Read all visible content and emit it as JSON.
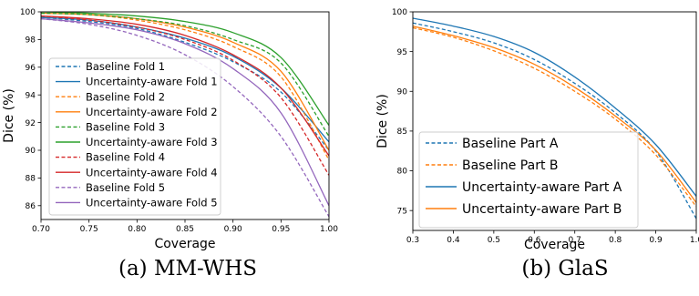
{
  "chart_data": [
    {
      "type": "line",
      "caption": "(a) MM-WHS",
      "xlabel": "Coverage",
      "ylabel": "Dice (%)",
      "xlim": [
        0.7,
        1.0
      ],
      "ylim": [
        85,
        100
      ],
      "xticks": [
        "0.70",
        "0.75",
        "0.80",
        "0.85",
        "0.90",
        "0.95",
        "1.00"
      ],
      "yticks": [
        "86",
        "88",
        "90",
        "92",
        "94",
        "96",
        "98",
        "100"
      ],
      "xtick_values": [
        0.7,
        0.75,
        0.8,
        0.85,
        0.9,
        0.95,
        1.0
      ],
      "ytick_values": [
        86,
        88,
        90,
        92,
        94,
        96,
        98,
        100
      ],
      "grid": false,
      "legend_position": "lower-left",
      "x": [
        0.7,
        0.75,
        0.8,
        0.85,
        0.9,
        0.95,
        1.0
      ],
      "series": [
        {
          "name": "Baseline Fold 1",
          "color": "#1f77b4",
          "dashed": true,
          "values": [
            99.6,
            99.3,
            98.8,
            97.8,
            96.4,
            94.2,
            90.0
          ]
        },
        {
          "name": "Uncertainty-aware Fold 1",
          "color": "#1f77b4",
          "dashed": false,
          "values": [
            99.6,
            99.4,
            98.9,
            98.1,
            96.8,
            94.5,
            90.6
          ]
        },
        {
          "name": "Baseline Fold 2",
          "color": "#ff7f0e",
          "dashed": true,
          "values": [
            99.9,
            99.8,
            99.4,
            98.7,
            97.5,
            95.3,
            89.3
          ]
        },
        {
          "name": "Uncertainty-aware Fold 2",
          "color": "#ff7f0e",
          "dashed": false,
          "values": [
            99.9,
            99.8,
            99.5,
            98.9,
            97.8,
            95.7,
            90.0
          ]
        },
        {
          "name": "Baseline Fold 3",
          "color": "#2ca02c",
          "dashed": true,
          "values": [
            99.9,
            99.8,
            99.5,
            99.0,
            98.0,
            96.3,
            91.0
          ]
        },
        {
          "name": "Uncertainty-aware Fold 3",
          "color": "#2ca02c",
          "dashed": false,
          "values": [
            100.0,
            99.9,
            99.7,
            99.3,
            98.5,
            96.7,
            91.8
          ]
        },
        {
          "name": "Baseline Fold 4",
          "color": "#d62728",
          "dashed": true,
          "values": [
            99.7,
            99.4,
            98.9,
            98.0,
            96.5,
            93.8,
            88.2
          ]
        },
        {
          "name": "Uncertainty-aware Fold 4",
          "color": "#d62728",
          "dashed": false,
          "values": [
            99.7,
            99.5,
            99.1,
            98.3,
            96.9,
            94.5,
            89.6
          ]
        },
        {
          "name": "Baseline Fold 5",
          "color": "#9467bd",
          "dashed": true,
          "values": [
            99.5,
            99.1,
            98.3,
            96.9,
            94.6,
            91.0,
            85.2
          ]
        },
        {
          "name": "Uncertainty-aware Fold 5",
          "color": "#9467bd",
          "dashed": false,
          "values": [
            99.5,
            99.2,
            98.7,
            97.7,
            95.9,
            92.7,
            86.0
          ]
        }
      ]
    },
    {
      "type": "line",
      "caption": "(b) GlaS",
      "xlabel": "Coverage",
      "ylabel": "Dice (%)",
      "xlim": [
        0.3,
        1.0
      ],
      "ylim": [
        72.5,
        100
      ],
      "xticks": [
        "0.3",
        "0.4",
        "0.5",
        "0.6",
        "0.7",
        "0.8",
        "0.9",
        "1.0"
      ],
      "yticks": [
        "75",
        "80",
        "85",
        "90",
        "95",
        "100"
      ],
      "xtick_values": [
        0.3,
        0.4,
        0.5,
        0.6,
        0.7,
        0.8,
        0.9,
        1.0
      ],
      "ytick_values": [
        75,
        80,
        85,
        90,
        95,
        100
      ],
      "grid": false,
      "legend_position": "lower-left",
      "x": [
        0.3,
        0.4,
        0.5,
        0.6,
        0.7,
        0.8,
        0.9,
        1.0
      ],
      "series": [
        {
          "name": "Baseline Part A",
          "color": "#1f77b4",
          "dashed": true,
          "values": [
            98.6,
            97.5,
            96.1,
            94.0,
            91.0,
            87.3,
            82.5,
            74.0
          ]
        },
        {
          "name": "Baseline Part B",
          "color": "#ff7f0e",
          "dashed": true,
          "values": [
            98.0,
            96.8,
            95.1,
            92.9,
            90.0,
            86.5,
            82.0,
            75.5
          ]
        },
        {
          "name": "Uncertainty-aware Part A",
          "color": "#1f77b4",
          "dashed": false,
          "values": [
            99.2,
            98.2,
            96.9,
            94.9,
            91.8,
            87.9,
            83.3,
            76.8
          ]
        },
        {
          "name": "Uncertainty-aware Part B",
          "color": "#ff7f0e",
          "dashed": false,
          "values": [
            98.2,
            97.0,
            95.5,
            93.4,
            90.5,
            86.9,
            82.6,
            76.0
          ]
        }
      ]
    }
  ]
}
